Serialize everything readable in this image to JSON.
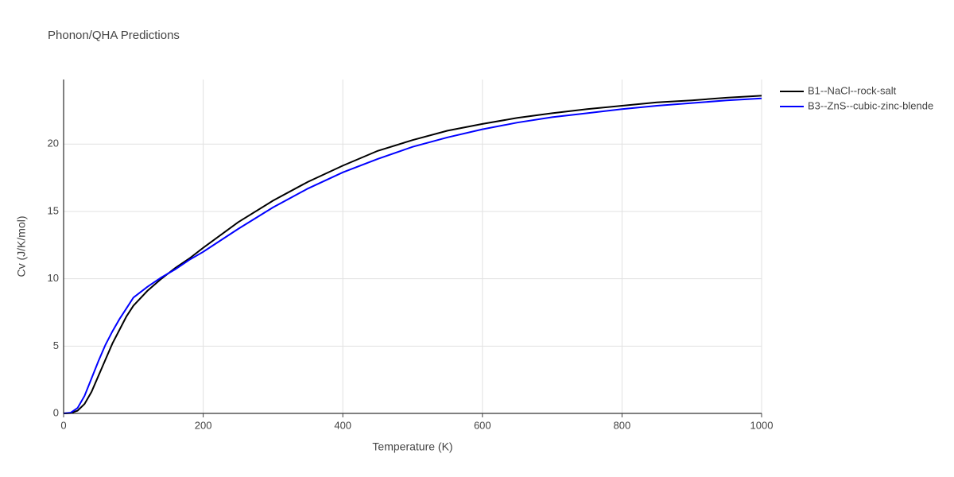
{
  "chart_data": {
    "type": "line",
    "title": "Phonon/QHA Predictions",
    "xlabel": "Temperature (K)",
    "ylabel": "Cv (J/K/mol)",
    "x": [
      0,
      10,
      20,
      30,
      40,
      50,
      60,
      70,
      80,
      90,
      100,
      120,
      140,
      160,
      180,
      200,
      250,
      300,
      350,
      400,
      450,
      500,
      550,
      600,
      650,
      700,
      750,
      800,
      850,
      900,
      950,
      1000
    ],
    "series": [
      {
        "name": "B1--NaCl--rock-salt",
        "color": "#000000",
        "values": [
          0,
          0.02,
          0.2,
          0.7,
          1.6,
          2.8,
          4.0,
          5.2,
          6.2,
          7.2,
          8.0,
          9.1,
          10.0,
          10.8,
          11.5,
          12.3,
          14.2,
          15.8,
          17.2,
          18.4,
          19.5,
          20.3,
          21.0,
          21.5,
          21.95,
          22.3,
          22.6,
          22.85,
          23.1,
          23.25,
          23.45,
          23.6
        ]
      },
      {
        "name": "B3--ZnS--cubic-zinc-blende",
        "color": "#0000ff",
        "values": [
          0,
          0.05,
          0.4,
          1.3,
          2.6,
          3.9,
          5.1,
          6.1,
          7.0,
          7.8,
          8.6,
          9.4,
          10.1,
          10.7,
          11.4,
          12.0,
          13.7,
          15.3,
          16.7,
          17.9,
          18.9,
          19.8,
          20.5,
          21.1,
          21.6,
          22.0,
          22.3,
          22.6,
          22.85,
          23.05,
          23.25,
          23.4
        ]
      }
    ],
    "xlim": [
      0,
      1000
    ],
    "xticks": [
      0,
      200,
      400,
      600,
      800,
      1000
    ],
    "ylim": [
      0,
      24.8
    ],
    "yticks": [
      0,
      5,
      10,
      15,
      20
    ],
    "grid": true
  }
}
